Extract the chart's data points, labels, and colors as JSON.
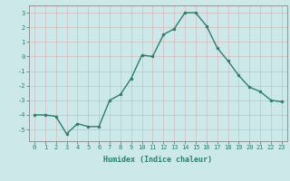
{
  "x": [
    0,
    1,
    2,
    3,
    4,
    5,
    6,
    7,
    8,
    9,
    10,
    11,
    12,
    13,
    14,
    15,
    16,
    17,
    18,
    19,
    20,
    21,
    22,
    23
  ],
  "y": [
    -4.0,
    -4.0,
    -4.1,
    -5.3,
    -4.6,
    -4.8,
    -4.8,
    -3.0,
    -2.6,
    -1.5,
    0.1,
    0.0,
    1.5,
    1.9,
    3.0,
    3.0,
    2.1,
    0.6,
    -0.3,
    -1.3,
    -2.1,
    -2.4,
    -3.0,
    -3.1
  ],
  "xlabel": "Humidex (Indice chaleur)",
  "ylim": [
    -5.8,
    3.5
  ],
  "xlim": [
    -0.5,
    23.5
  ],
  "yticks": [
    -5,
    -4,
    -3,
    -2,
    -1,
    0,
    1,
    2,
    3
  ],
  "xticks": [
    0,
    1,
    2,
    3,
    4,
    5,
    6,
    7,
    8,
    9,
    10,
    11,
    12,
    13,
    14,
    15,
    16,
    17,
    18,
    19,
    20,
    21,
    22,
    23
  ],
  "line_color": "#2e7d6e",
  "marker": "o",
  "marker_size": 2.0,
  "bg_color": "#cce8e8",
  "grid_color": "#e8f5f5",
  "axes_color": "#888888",
  "label_color": "#2e7d6e",
  "tick_color": "#2e7d6e",
  "font_family": "monospace",
  "xlabel_fontsize": 6.0,
  "tick_fontsize": 5.0,
  "linewidth": 1.0
}
